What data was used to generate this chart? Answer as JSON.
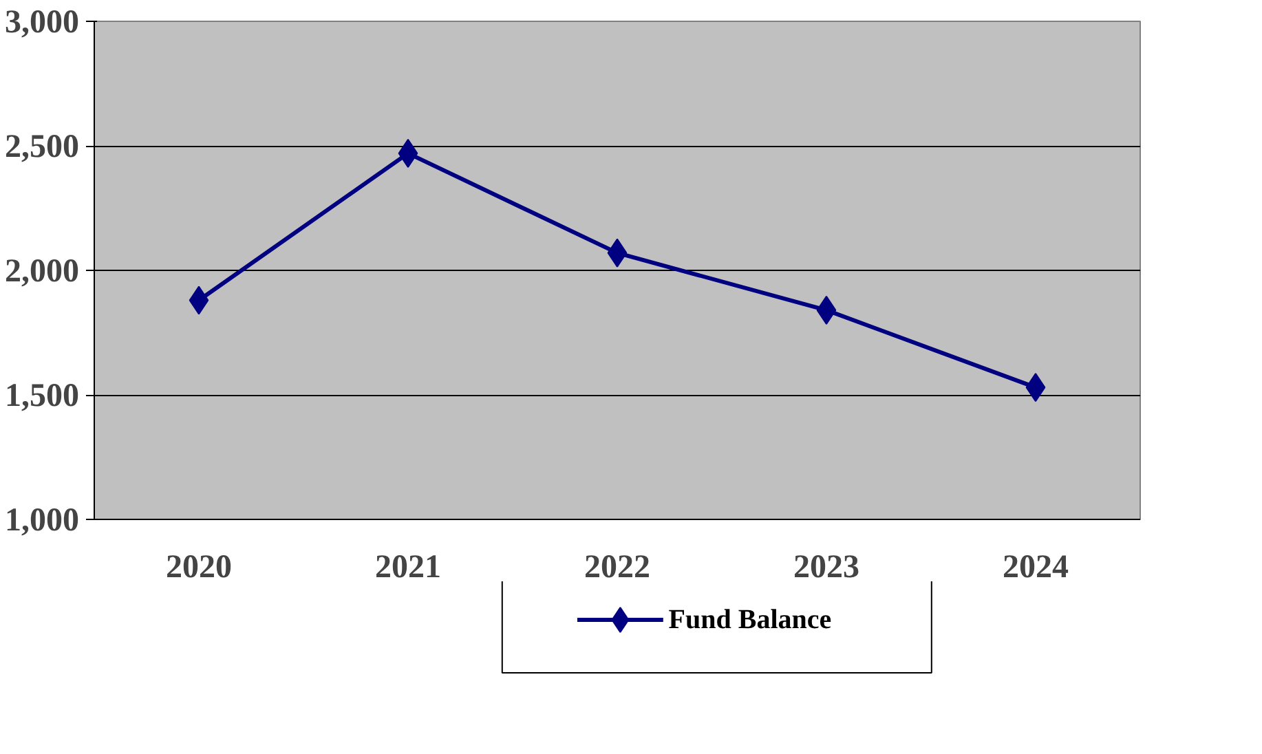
{
  "chart_data": {
    "type": "line",
    "categories": [
      "2020",
      "2021",
      "2022",
      "2023",
      "2024"
    ],
    "series": [
      {
        "name": "Fund Balance",
        "color": "#000080",
        "values": [
          1880,
          2470,
          2070,
          1840,
          1530
        ]
      }
    ],
    "ylim": [
      1000,
      3000
    ],
    "yticks": [
      {
        "value": 1000,
        "label": "1,000"
      },
      {
        "value": 1500,
        "label": "1,500"
      },
      {
        "value": 2000,
        "label": "2,000"
      },
      {
        "value": 2500,
        "label": "2,500"
      },
      {
        "value": 3000,
        "label": "3,000"
      }
    ],
    "grid": "y",
    "legend": "bottom",
    "marker": "diamond",
    "line_style": "solid"
  }
}
